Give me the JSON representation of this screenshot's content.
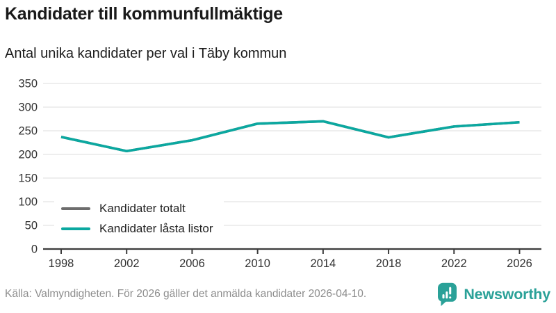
{
  "header": {
    "title": "Kandidater till kommunfullmäktige",
    "subtitle": "Antal unika kandidater per val i Täby kommun"
  },
  "chart_data": {
    "type": "line",
    "title": "Kandidater till kommunfullmäktige",
    "subtitle": "Antal unika kandidater per val i Täby kommun",
    "x": [
      1998,
      2002,
      2006,
      2010,
      2014,
      2018,
      2022,
      2026
    ],
    "series": [
      {
        "name": "Kandidater totalt",
        "color": "#6d6d6d",
        "values": [
          237,
          207,
          230,
          265,
          270,
          236,
          259,
          268
        ]
      },
      {
        "name": "Kandidater låsta listor",
        "color": "#0ba8a0",
        "values": [
          237,
          207,
          230,
          265,
          270,
          236,
          259,
          268
        ]
      }
    ],
    "ylim": [
      0,
      350
    ],
    "yticks": [
      0,
      50,
      100,
      150,
      200,
      250,
      300,
      350
    ],
    "grid": true,
    "legend_position": "inside-bottom-left",
    "layout_hints": "gray 'Kandidater totalt' line is fully covered by the teal line; legend has white background over gridlines"
  },
  "colors": {
    "grid": "#e3e3e3",
    "axis": "#3c3c3c",
    "tick_label": "#333333",
    "title": "#1a1a1a",
    "source": "#8d8d8d",
    "brand": "#2aa198"
  },
  "footer": {
    "source": "Källa: Valmyndigheten. För 2026 gäller det anmälda kandidater 2026-04-10.",
    "brand_name": "Newsworthy"
  }
}
